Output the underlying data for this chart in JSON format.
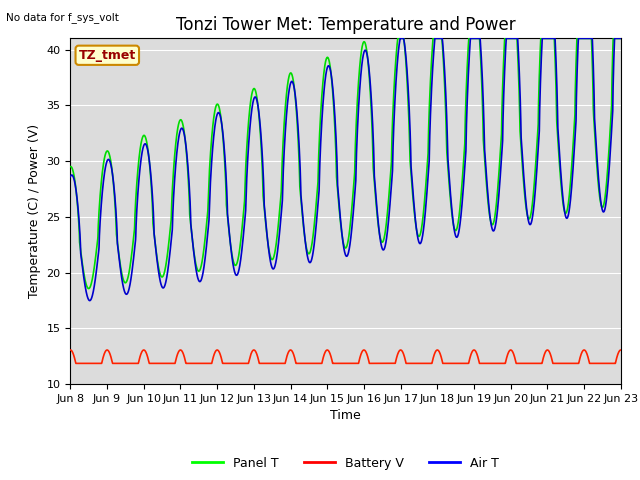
{
  "title": "Tonzi Tower Met: Temperature and Power",
  "top_left_text": "No data for f_sys_volt",
  "ylabel": "Temperature (C) / Power (V)",
  "xlabel": "Time",
  "xlim_days": [
    8,
    23
  ],
  "ylim": [
    10,
    41
  ],
  "yticks": [
    10,
    15,
    20,
    25,
    30,
    35,
    40
  ],
  "xtick_labels": [
    "Jun 8",
    "Jun 9",
    "Jun 10",
    "Jun 11",
    "Jun 12",
    "Jun 13",
    "Jun 14",
    "Jun 15",
    "Jun 16",
    "Jun 17",
    "Jun 18",
    "Jun 19",
    "Jun 20",
    "Jun 21",
    "Jun 22",
    "Jun 23"
  ],
  "legend_entries": [
    "Panel T",
    "Battery V",
    "Air T"
  ],
  "legend_colors": [
    "#00ff00",
    "#ff0000",
    "#0000ff"
  ],
  "panel_color": "#00dd00",
  "battery_color": "#ff2200",
  "air_color": "#0000cc",
  "label_box_text": "TZ_tmet",
  "label_box_facecolor": "#ffffcc",
  "label_box_edgecolor": "#cc8800",
  "background_color": "#dcdcdc",
  "grid_color": "#ffffff",
  "title_fontsize": 12,
  "axis_label_fontsize": 9,
  "tick_fontsize": 8,
  "linewidth": 1.2
}
